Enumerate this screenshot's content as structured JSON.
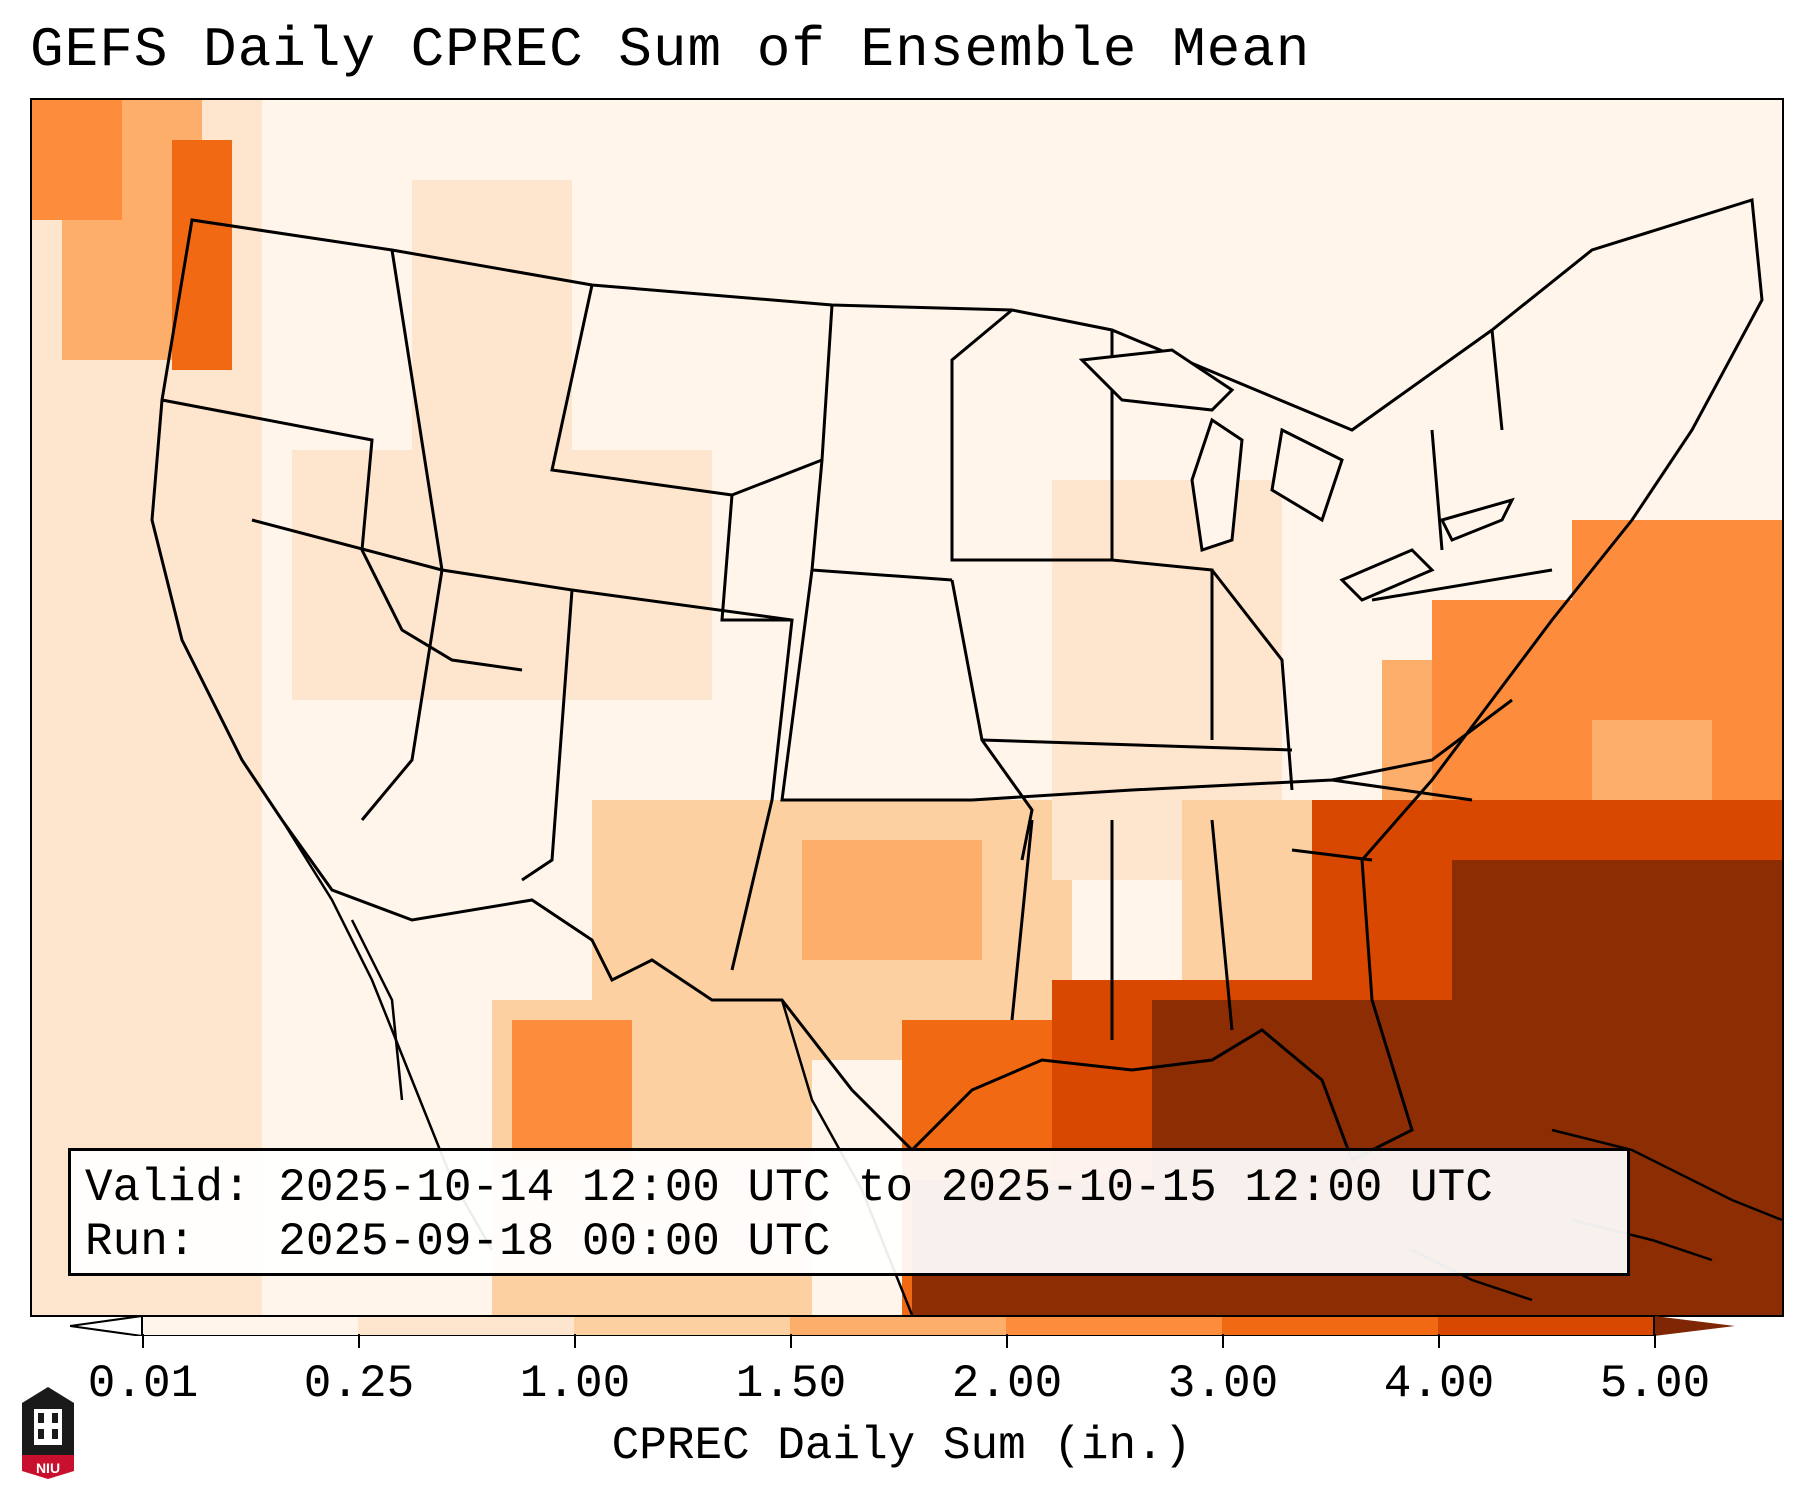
{
  "title": "GEFS Daily CPREC Sum of Ensemble Mean",
  "info": {
    "valid_line": "Valid: 2025-10-14 12:00 UTC to 2025-10-15 12:00 UTC",
    "run_line": "Run:   2025-09-18 00:00 UTC"
  },
  "colorbar": {
    "label": "CPREC Daily Sum (in.)",
    "ticks": [
      "0.01",
      "0.25",
      "1.00",
      "1.50",
      "2.00",
      "3.00",
      "4.00",
      "5.00"
    ],
    "colors": [
      "#fff5eb",
      "#fee6ce",
      "#fdd0a2",
      "#fdae6b",
      "#fd8d3c",
      "#f16913",
      "#d94801",
      "#8c2d04"
    ],
    "under_color": "#ffffff",
    "over_color": "#7f2704"
  },
  "logo": {
    "text": "NIU",
    "color": "#c8102e"
  }
}
